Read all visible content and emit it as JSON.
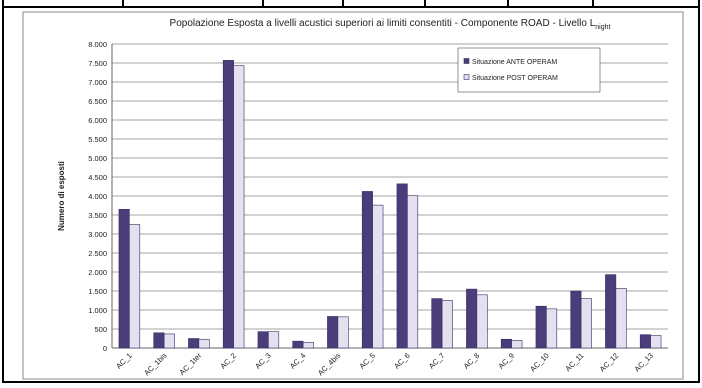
{
  "chart_data": {
    "type": "bar",
    "title": "Popolazione Esposta a livelli acustici superiori ai limiti consentiti - Componente ROAD - Livello L",
    "title_subscript": "night",
    "y_label": "Numero di esposti",
    "categories": [
      "AC_1",
      "AC_1bis",
      "AC_1ter",
      "AC_2",
      "AC_3",
      "AC_4",
      "AC_4bis",
      "AC_5",
      "AC_6",
      "AC_7",
      "AC_8",
      "AC_9",
      "AC_10",
      "AC_11",
      "AC_12",
      "AC_13"
    ],
    "series": [
      {
        "name": "Situazione ANTE OPERAM",
        "color": "#4b3c7a",
        "values": [
          3650,
          400,
          250,
          7570,
          430,
          180,
          830,
          4120,
          4320,
          1300,
          1550,
          230,
          1100,
          1500,
          1930,
          350
        ]
      },
      {
        "name": "Situazione POST OPERAM",
        "color": "#e3e0f0",
        "values": [
          3250,
          370,
          230,
          7430,
          430,
          150,
          820,
          3760,
          4010,
          1250,
          1400,
          200,
          1030,
          1300,
          1570,
          330
        ]
      }
    ],
    "ylim": [
      0,
      8000
    ],
    "yticks": [
      0,
      {
        "value": 500,
        "label": "500"
      },
      {
        "value": 1000,
        "label": "1.000"
      },
      {
        "value": 1500,
        "label": "1.500"
      },
      {
        "value": 2000,
        "label": "2.000"
      },
      {
        "value": 2500,
        "label": "2.500"
      },
      {
        "value": 3000,
        "label": "3.000"
      },
      {
        "value": 3500,
        "label": "3.500"
      },
      {
        "value": 4000,
        "label": "4.000"
      },
      {
        "value": 4500,
        "label": "4.500"
      },
      {
        "value": 5000,
        "label": "5.000"
      },
      {
        "value": 5500,
        "label": "5.500"
      },
      {
        "value": 6000,
        "label": "6.000"
      },
      {
        "value": 6500,
        "label": "6.500"
      },
      {
        "value": 7000,
        "label": "7.000"
      },
      {
        "value": 7500,
        "label": "7.500"
      },
      {
        "value": 8000,
        "label": "8.000"
      }
    ],
    "grid": true,
    "legend": "upper-right"
  }
}
